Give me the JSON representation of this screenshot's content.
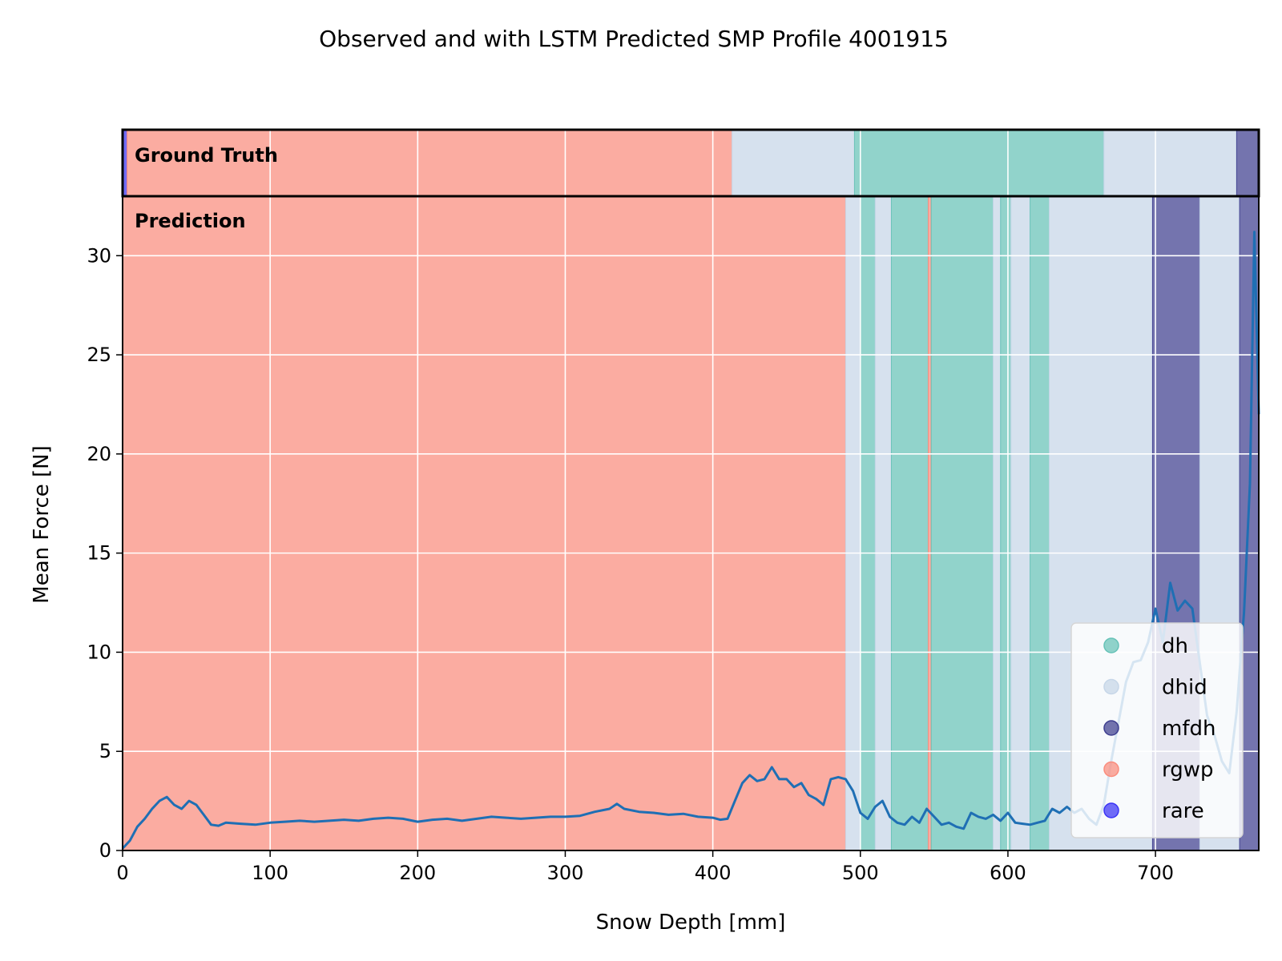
{
  "chart_data": {
    "type": "line",
    "title": "Observed and with LSTM Predicted SMP Profile 4001915",
    "xlabel": "Snow Depth [mm]",
    "ylabel": "Mean Force [N]",
    "xlim": [
      0,
      770
    ],
    "ylim": [
      0,
      33
    ],
    "xticks": [
      0,
      100,
      200,
      300,
      400,
      500,
      600,
      700
    ],
    "yticks": [
      0,
      5,
      10,
      15,
      20,
      25,
      30
    ],
    "grid": true,
    "legend_position": "lower-right",
    "panel_labels": {
      "ground_truth": "Ground Truth",
      "prediction": "Prediction"
    },
    "classes": [
      {
        "name": "dh",
        "color": "#66c2b7"
      },
      {
        "name": "dhid",
        "color": "#c6d6e8"
      },
      {
        "name": "mfdh",
        "color": "#3e3e8f"
      },
      {
        "name": "rgwp",
        "color": "#fa8c7d"
      },
      {
        "name": "rare",
        "color": "#3a33f5"
      }
    ],
    "ground_truth_segments": [
      {
        "start": 0,
        "end": 3,
        "class": "rare"
      },
      {
        "start": 3,
        "end": 413,
        "class": "rgwp"
      },
      {
        "start": 413,
        "end": 496,
        "class": "dhid"
      },
      {
        "start": 496,
        "end": 665,
        "class": "dh"
      },
      {
        "start": 665,
        "end": 755,
        "class": "dhid"
      },
      {
        "start": 755,
        "end": 770,
        "class": "mfdh"
      }
    ],
    "prediction_segments": [
      {
        "start": 0,
        "end": 490,
        "class": "rgwp"
      },
      {
        "start": 490,
        "end": 500,
        "class": "dhid"
      },
      {
        "start": 500,
        "end": 510,
        "class": "dh"
      },
      {
        "start": 510,
        "end": 521,
        "class": "dhid"
      },
      {
        "start": 521,
        "end": 546,
        "class": "dh"
      },
      {
        "start": 546,
        "end": 548,
        "class": "rgwp"
      },
      {
        "start": 548,
        "end": 590,
        "class": "dh"
      },
      {
        "start": 590,
        "end": 595,
        "class": "dhid"
      },
      {
        "start": 595,
        "end": 602,
        "class": "dh"
      },
      {
        "start": 602,
        "end": 615,
        "class": "dhid"
      },
      {
        "start": 615,
        "end": 628,
        "class": "dh"
      },
      {
        "start": 628,
        "end": 698,
        "class": "dhid"
      },
      {
        "start": 698,
        "end": 730,
        "class": "mfdh"
      },
      {
        "start": 730,
        "end": 757,
        "class": "dhid"
      },
      {
        "start": 757,
        "end": 770,
        "class": "mfdh"
      }
    ],
    "series": [
      {
        "x": [
          0,
          5,
          10,
          15,
          20,
          25,
          30,
          35,
          40,
          45,
          50,
          55,
          60,
          65,
          70,
          80,
          90,
          100,
          110,
          120,
          130,
          140,
          150,
          160,
          170,
          180,
          190,
          200,
          210,
          220,
          230,
          240,
          250,
          260,
          270,
          280,
          290,
          300,
          310,
          320,
          330,
          335,
          340,
          350,
          360,
          370,
          380,
          390,
          400,
          405,
          410,
          415,
          420,
          425,
          430,
          435,
          440,
          445,
          450,
          455,
          460,
          465,
          470,
          475,
          480,
          485,
          490,
          495,
          500,
          505,
          510,
          515,
          520,
          525,
          530,
          535,
          540,
          545,
          550,
          555,
          560,
          565,
          570,
          575,
          580,
          585,
          590,
          595,
          600,
          605,
          610,
          615,
          620,
          625,
          630,
          635,
          640,
          645,
          650,
          655,
          660,
          665,
          670,
          675,
          680,
          685,
          690,
          695,
          700,
          705,
          710,
          715,
          720,
          725,
          730,
          735,
          740,
          745,
          750,
          755,
          760,
          764,
          767,
          770
        ],
        "values": [
          0.1,
          0.5,
          1.2,
          1.6,
          2.1,
          2.5,
          2.7,
          2.3,
          2.1,
          2.5,
          2.3,
          1.8,
          1.3,
          1.25,
          1.4,
          1.35,
          1.3,
          1.4,
          1.45,
          1.5,
          1.45,
          1.5,
          1.55,
          1.5,
          1.6,
          1.65,
          1.6,
          1.45,
          1.55,
          1.6,
          1.5,
          1.6,
          1.7,
          1.65,
          1.6,
          1.65,
          1.7,
          1.7,
          1.75,
          1.95,
          2.1,
          2.35,
          2.1,
          1.95,
          1.9,
          1.8,
          1.85,
          1.7,
          1.65,
          1.55,
          1.6,
          2.5,
          3.4,
          3.8,
          3.5,
          3.6,
          4.2,
          3.6,
          3.6,
          3.2,
          3.4,
          2.8,
          2.6,
          2.3,
          3.6,
          3.7,
          3.6,
          3.0,
          1.9,
          1.6,
          2.2,
          2.5,
          1.7,
          1.4,
          1.3,
          1.7,
          1.4,
          2.1,
          1.7,
          1.3,
          1.4,
          1.2,
          1.1,
          1.9,
          1.7,
          1.6,
          1.8,
          1.5,
          1.9,
          1.4,
          1.35,
          1.3,
          1.4,
          1.5,
          2.1,
          1.9,
          2.2,
          1.9,
          2.1,
          1.6,
          1.3,
          2.3,
          4.5,
          6.5,
          8.5,
          9.5,
          9.6,
          10.5,
          12.2,
          10.5,
          13.5,
          12.1,
          12.6,
          12.2,
          9.5,
          6.8,
          5.8,
          4.5,
          3.9,
          7.0,
          12.0,
          18.5,
          31.2,
          22.0
        ]
      }
    ]
  }
}
